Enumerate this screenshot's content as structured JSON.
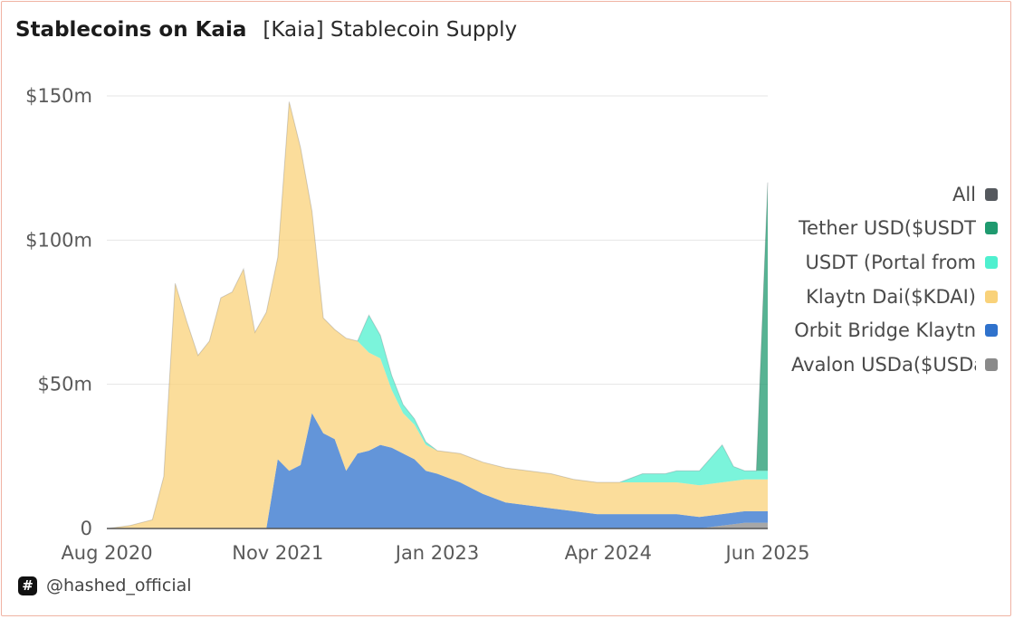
{
  "header": {
    "title": "Stablecoins on Kaia",
    "subtitle": "[Kaia] Stablecoin Supply"
  },
  "footer": {
    "badge_glyph": "#",
    "handle": "@hashed_official"
  },
  "legend": [
    {
      "label": "All",
      "color": "#55595e"
    },
    {
      "label": "Tether USD($USDT",
      "color": "#1f9a6f"
    },
    {
      "label": "USDT (Portal from",
      "color": "#4ff0cf"
    },
    {
      "label": "Klaytn Dai($KDAI)",
      "color": "#f9d27a"
    },
    {
      "label": "Orbit Bridge Klaytn",
      "color": "#2f72cc"
    },
    {
      "label": "Avalon USDa($USDa",
      "color": "#8a8a8a"
    }
  ],
  "chart_data": {
    "type": "area",
    "stacked": true,
    "title": "[Kaia] Stablecoin Supply",
    "xlabel": "",
    "ylabel": "",
    "x_ticks": [
      "Aug 2020",
      "Nov 2021",
      "Jan 2023",
      "Apr 2024",
      "Jun 2025"
    ],
    "y_ticks": [
      "0",
      "$50m",
      "$100m",
      "$150m"
    ],
    "xlim": [
      "2020-08-01",
      "2025-06-01"
    ],
    "ylim": [
      0,
      150
    ],
    "y_unit": "$m",
    "grid": true,
    "legend_position": "right",
    "x": [
      "2020-08",
      "2020-10",
      "2020-12",
      "2021-01",
      "2021-02",
      "2021-03",
      "2021-04",
      "2021-05",
      "2021-06",
      "2021-07",
      "2021-08",
      "2021-09",
      "2021-10",
      "2021-11",
      "2021-12",
      "2022-01",
      "2022-02",
      "2022-03",
      "2022-04",
      "2022-05",
      "2022-06",
      "2022-07",
      "2022-08",
      "2022-09",
      "2022-10",
      "2022-11",
      "2022-12",
      "2023-01",
      "2023-03",
      "2023-05",
      "2023-07",
      "2023-09",
      "2023-11",
      "2024-01",
      "2024-03",
      "2024-05",
      "2024-07",
      "2024-09",
      "2024-10",
      "2024-12",
      "2025-02",
      "2025-03",
      "2025-04",
      "2025-05",
      "2025-06"
    ],
    "series": [
      {
        "name": "Avalon USDa($USDa",
        "color": "#8a8a8a",
        "values": [
          0,
          0,
          0,
          0,
          0,
          0,
          0,
          0,
          0,
          0,
          0,
          0,
          0,
          0,
          0,
          0,
          0,
          0,
          0,
          0,
          0,
          0,
          0,
          0,
          0,
          0,
          0,
          0,
          0,
          0,
          0,
          0,
          0,
          0,
          0,
          0,
          0,
          0,
          0,
          0,
          1,
          1.5,
          2,
          2,
          2
        ]
      },
      {
        "name": "Orbit Bridge Klaytn",
        "color": "#2f72cc",
        "values": [
          0,
          0,
          0,
          0,
          0,
          0,
          0,
          0,
          0,
          0,
          0,
          0,
          0,
          24,
          20,
          22,
          40,
          33,
          31,
          20,
          26,
          27,
          29,
          28,
          26,
          24,
          20,
          19,
          16,
          12,
          9,
          8,
          7,
          6,
          5,
          5,
          5,
          5,
          5,
          4,
          4,
          4,
          4,
          4,
          4
        ]
      },
      {
        "name": "Klaytn Dai($KDAI)",
        "color": "#f9d27a",
        "values": [
          0,
          1,
          3,
          18,
          85,
          72,
          60,
          65,
          80,
          82,
          90,
          68,
          75,
          70,
          128,
          110,
          70,
          40,
          38,
          46,
          39,
          34,
          30,
          20,
          14,
          12,
          9,
          8,
          10,
          11,
          12,
          12,
          12,
          11,
          11,
          11,
          11,
          11,
          11,
          11,
          11,
          11,
          11,
          11,
          11
        ]
      },
      {
        "name": "USDT (Portal from",
        "color": "#4ff0cf",
        "values": [
          0,
          0,
          0,
          0,
          0,
          0,
          0,
          0,
          0,
          0,
          0,
          0,
          0,
          0,
          0,
          0,
          0,
          0,
          0,
          0,
          0,
          13,
          8,
          5,
          3,
          2,
          1,
          0,
          0,
          0,
          0,
          0,
          0,
          0,
          0,
          0,
          3,
          3,
          4,
          5,
          13,
          5,
          3,
          3,
          3
        ]
      },
      {
        "name": "Tether USD($USDT",
        "color": "#1f9a6f",
        "values": [
          0,
          0,
          0,
          0,
          0,
          0,
          0,
          0,
          0,
          0,
          0,
          0,
          0,
          0,
          0,
          0,
          0,
          0,
          0,
          0,
          0,
          0,
          0,
          0,
          0,
          0,
          0,
          0,
          0,
          0,
          0,
          0,
          0,
          0,
          0,
          0,
          0,
          0,
          0,
          0,
          0,
          0,
          0,
          0,
          100
        ]
      }
    ]
  }
}
